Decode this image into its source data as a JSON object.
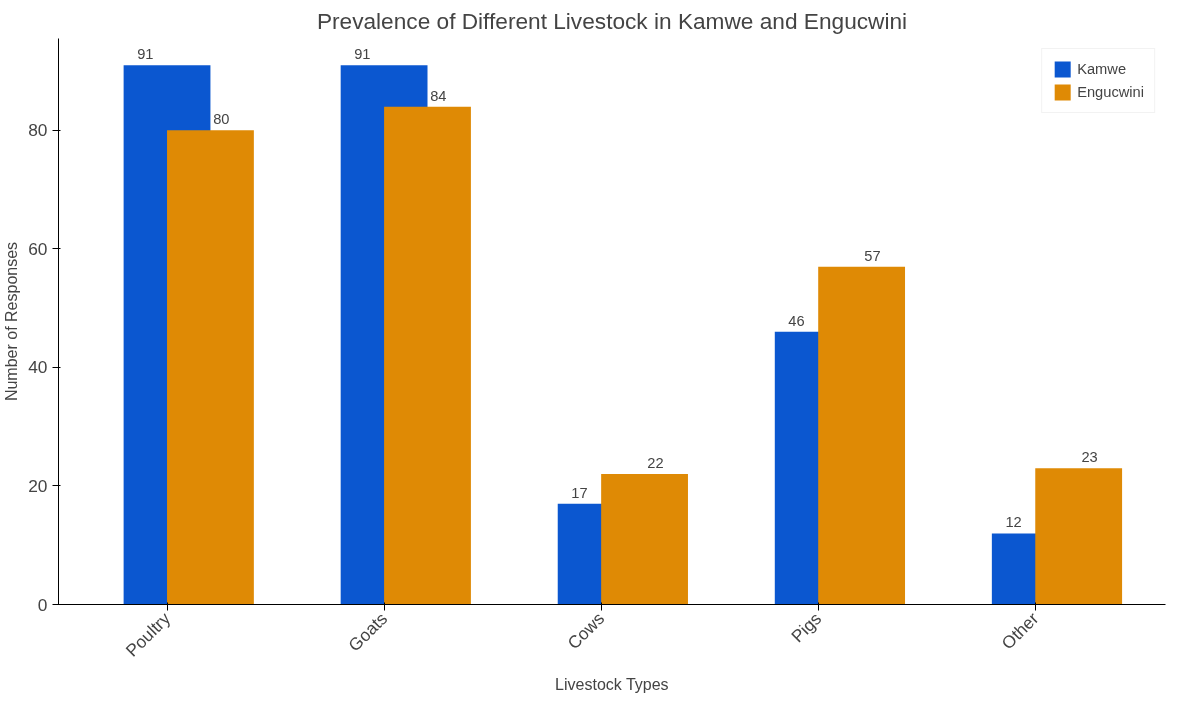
{
  "chart_data": {
    "type": "bar",
    "title": "Prevalence of Different Livestock in Kamwe and Engucwini",
    "xlabel": "Livestock Types",
    "ylabel": "Number of Responses",
    "categories": [
      "Poultry",
      "Goats",
      "Cows",
      "Pigs",
      "Other"
    ],
    "series": [
      {
        "name": "Kamwe",
        "color": "#0b57d0",
        "values": [
          91,
          91,
          17,
          46,
          12
        ]
      },
      {
        "name": "Engucwini",
        "color": "#df8a05",
        "values": [
          80,
          84,
          22,
          57,
          23
        ]
      }
    ],
    "ylim": [
      0,
      95.5
    ],
    "yticks": [
      0,
      20,
      40,
      60,
      80
    ],
    "grid": false,
    "legend": "top right",
    "data_labels": true
  }
}
